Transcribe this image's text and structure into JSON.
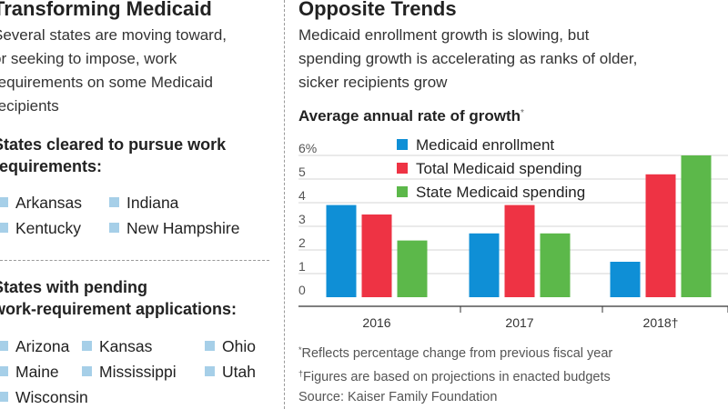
{
  "left": {
    "title": "Transforming Medicaid",
    "dek_lines": [
      "Several states are moving toward,",
      "or seeking to impose, work",
      "requirements on some Medicaid",
      "recipients"
    ],
    "cleared": {
      "heading_lines": [
        "States cleared to pursue work",
        "requirements:"
      ],
      "states": [
        "Arkansas",
        "Indiana",
        "Kentucky",
        "New Hampshire"
      ]
    },
    "pending": {
      "heading_lines": [
        "States with pending",
        "work-requirement applications:"
      ],
      "states": [
        "Arizona",
        "Kansas",
        "Ohio",
        "Maine",
        "Mississippi",
        "Utah",
        "Wisconsin"
      ]
    },
    "swatch_color": "#a6cfe8"
  },
  "right": {
    "title": "Opposite Trends",
    "dek_lines": [
      "Medicaid enrollment growth is slowing, but",
      "spending growth is accelerating as ranks of older,",
      "sicker recipients grow"
    ],
    "chart_title": "Average annual rate of growth",
    "chart_title_mark": "*",
    "notes": [
      {
        "mark": "*",
        "text": "Reflects percentage change from previous fiscal year"
      },
      {
        "mark": "†",
        "text": "Figures are based on projections in enacted budgets"
      },
      {
        "mark": "",
        "text": "Source: Kaiser Family Foundation"
      }
    ]
  },
  "chart_data": {
    "type": "bar",
    "categories": [
      "2016",
      "2017",
      "2018†"
    ],
    "series": [
      {
        "name": "Medicaid enrollment",
        "color": "#0f8fd6",
        "values": [
          3.9,
          2.7,
          1.5
        ]
      },
      {
        "name": "Total Medicaid spending",
        "color": "#ee3344",
        "values": [
          3.5,
          3.9,
          5.2
        ]
      },
      {
        "name": "State Medicaid spending",
        "color": "#5cb84a",
        "values": [
          2.4,
          2.7,
          6.0
        ]
      }
    ],
    "yticks": [
      "0",
      "1",
      "2",
      "3",
      "4",
      "5",
      "6%"
    ],
    "ylim": [
      0,
      6
    ],
    "grid": true,
    "legend": "top-left"
  }
}
